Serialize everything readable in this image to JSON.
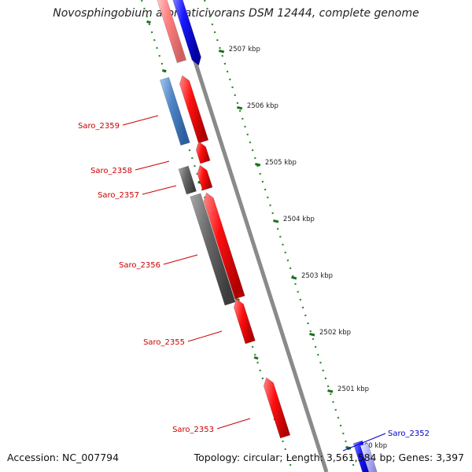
{
  "title": "Novosphingobium aromaticivorans DSM 12444, complete genome",
  "footer": {
    "accession": "Accession: NC_007794",
    "summary": "Topology: circular; Length: 3,561,584 bp; Genes: 3,397"
  },
  "colors": {
    "backbone": "#8a8a8a",
    "tick": "#2e8b2e",
    "forward_gene": "#ff1010",
    "forward_gene_faded": "#ff8080",
    "reverse_gene": "#1818ff",
    "reverse_gene_faded": "#b8b8ff",
    "cds_grey": "#6a6a6a",
    "cds_blue": "#4f86c6",
    "label_forward": "#cc0000",
    "label_reverse": "#0000cc",
    "tick_label": "#222222"
  },
  "scale": {
    "unit": "kbp",
    "ticks": [
      {
        "position_kbp": 2507,
        "label": "2507 kbp"
      },
      {
        "position_kbp": 2506,
        "label": "2506 kbp"
      },
      {
        "position_kbp": 2505,
        "label": "2505 kbp"
      },
      {
        "position_kbp": 2504,
        "label": "2504 kbp"
      },
      {
        "position_kbp": 2503,
        "label": "2503 kbp"
      },
      {
        "position_kbp": 2502,
        "label": "2502 kbp"
      },
      {
        "position_kbp": 2501,
        "label": "2501 kbp"
      },
      {
        "position_kbp": 2500,
        "label": "2500 kbp"
      }
    ]
  },
  "gene_labels": [
    {
      "name": "Saro_2359",
      "strand": "forward"
    },
    {
      "name": "Saro_2358",
      "strand": "forward"
    },
    {
      "name": "Saro_2357",
      "strand": "forward"
    },
    {
      "name": "Saro_2356",
      "strand": "forward"
    },
    {
      "name": "Saro_2355",
      "strand": "forward"
    },
    {
      "name": "Saro_2353",
      "strand": "forward"
    },
    {
      "name": "Saro_2352",
      "strand": "reverse"
    }
  ]
}
